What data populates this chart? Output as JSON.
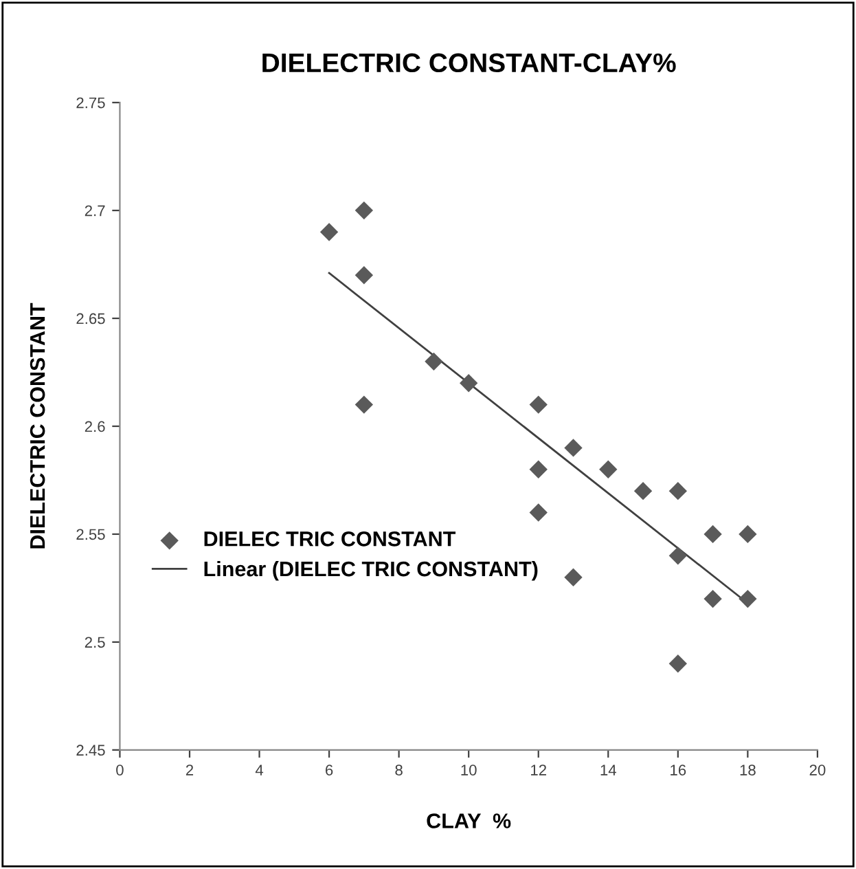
{
  "chart_data": {
    "type": "scatter",
    "title": "DIELECTRIC CONSTANT-CLAY%",
    "xlabel": "CLAY  %",
    "ylabel": "DIELECTRIC CONSTANT",
    "series": [
      {
        "name": "DIELEC TRIC CONSTANT",
        "marker": "diamond",
        "color": "#5a5a5a",
        "x": [
          6,
          7,
          7,
          7,
          9,
          10,
          12,
          12,
          12,
          13,
          13,
          14,
          15,
          16,
          16,
          16,
          17,
          17,
          18,
          18
        ],
        "values": [
          2.69,
          2.7,
          2.67,
          2.61,
          2.63,
          2.62,
          2.61,
          2.58,
          2.56,
          2.59,
          2.53,
          2.58,
          2.57,
          2.57,
          2.54,
          2.49,
          2.55,
          2.52,
          2.55,
          2.52
        ]
      },
      {
        "name": "Linear (DIELEC TRIC CONSTANT)",
        "type": "line",
        "marker": "none",
        "line_style": "solid",
        "color": "#404040",
        "x": [
          6,
          18
        ],
        "values": [
          2.671,
          2.518
        ]
      }
    ],
    "xlim": [
      0,
      20
    ],
    "xticks": [
      0,
      2,
      4,
      6,
      8,
      10,
      12,
      14,
      16,
      18,
      20
    ],
    "ylim": [
      2.45,
      2.75
    ],
    "yticks": [
      2.45,
      2.5,
      2.55,
      2.6,
      2.65,
      2.7,
      2.75
    ],
    "grid": false,
    "legend": "left"
  }
}
